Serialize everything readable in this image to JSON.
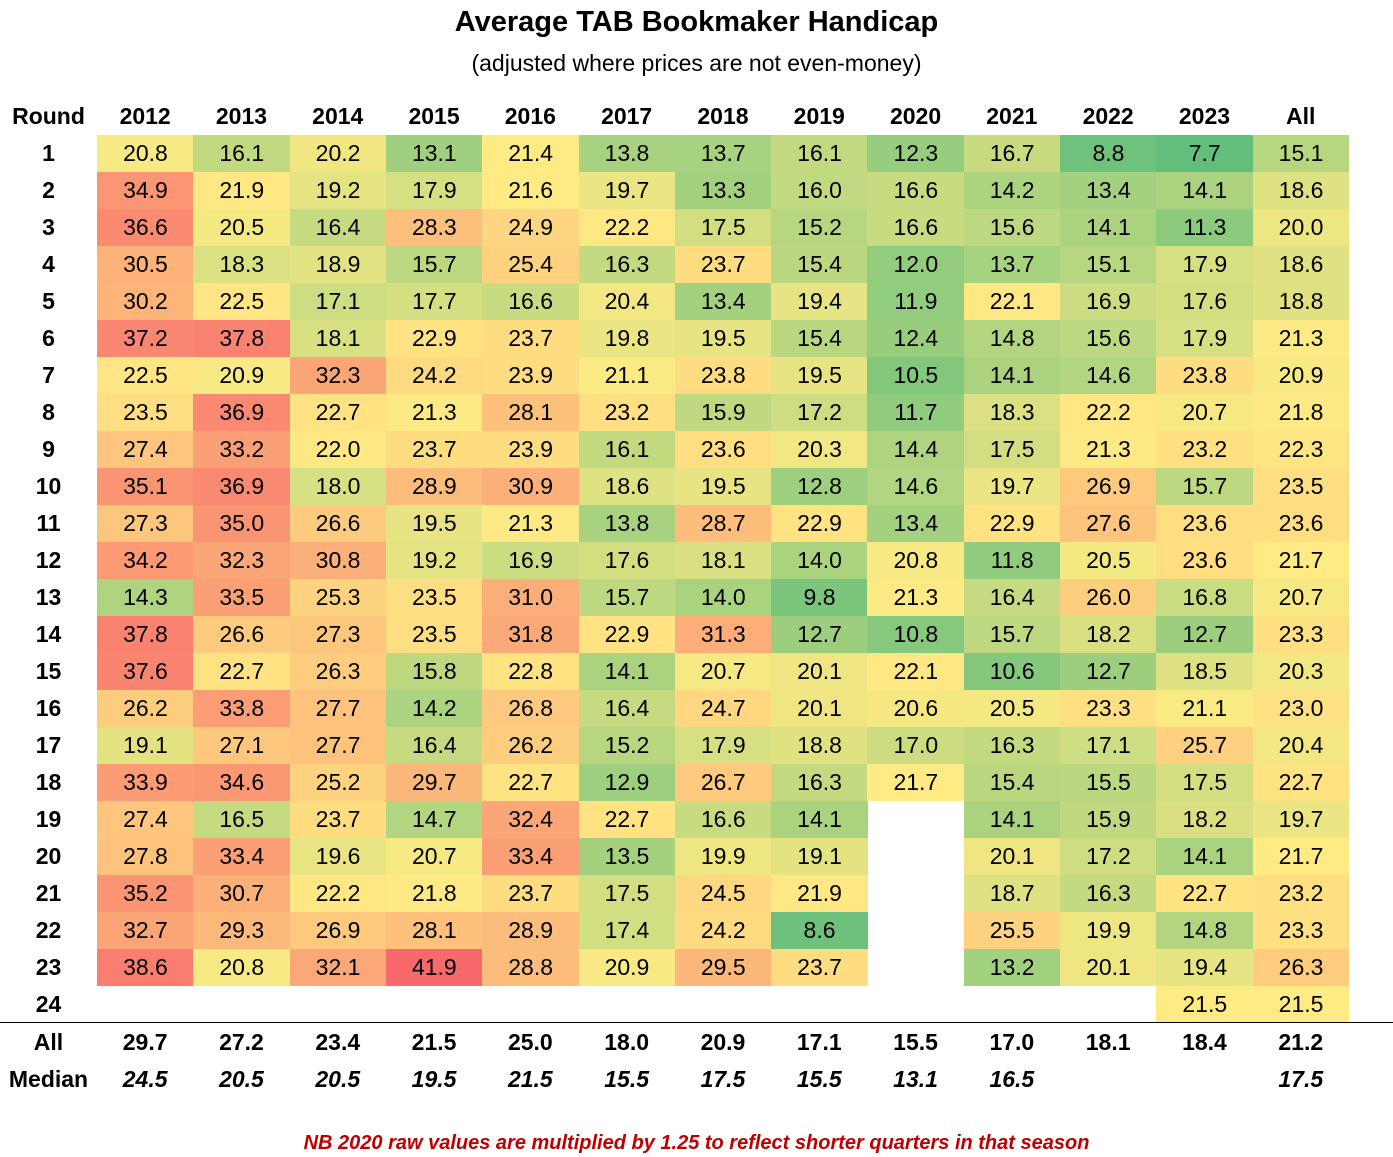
{
  "title": "Average TAB Bookmaker Handicap",
  "subtitle": "(adjusted where prices are not even-money)",
  "footnote": "NB 2020 raw values are multiplied by 1.25 to reflect shorter quarters in that season",
  "chart_data": {
    "type": "heatmap",
    "row_header": "Round",
    "columns": [
      "2012",
      "2013",
      "2014",
      "2015",
      "2016",
      "2017",
      "2018",
      "2019",
      "2020",
      "2021",
      "2022",
      "2023",
      "All"
    ],
    "rows": [
      {
        "label": "1",
        "values": [
          20.8,
          16.1,
          20.2,
          13.1,
          21.4,
          13.8,
          13.7,
          16.1,
          12.3,
          16.7,
          8.8,
          7.7,
          15.1
        ]
      },
      {
        "label": "2",
        "values": [
          34.9,
          21.9,
          19.2,
          17.9,
          21.6,
          19.7,
          13.3,
          16.0,
          16.6,
          14.2,
          13.4,
          14.1,
          18.6
        ]
      },
      {
        "label": "3",
        "values": [
          36.6,
          20.5,
          16.4,
          28.3,
          24.9,
          22.2,
          17.5,
          15.2,
          16.6,
          15.6,
          14.1,
          11.3,
          20.0
        ]
      },
      {
        "label": "4",
        "values": [
          30.5,
          18.3,
          18.9,
          15.7,
          25.4,
          16.3,
          23.7,
          15.4,
          12.0,
          13.7,
          15.1,
          17.9,
          18.6
        ]
      },
      {
        "label": "5",
        "values": [
          30.2,
          22.5,
          17.1,
          17.7,
          16.6,
          20.4,
          13.4,
          19.4,
          11.9,
          22.1,
          16.9,
          17.6,
          18.8
        ]
      },
      {
        "label": "6",
        "values": [
          37.2,
          37.8,
          18.1,
          22.9,
          23.7,
          19.8,
          19.5,
          15.4,
          12.4,
          14.8,
          15.6,
          17.9,
          21.3
        ]
      },
      {
        "label": "7",
        "values": [
          22.5,
          20.9,
          32.3,
          24.2,
          23.9,
          21.1,
          23.8,
          19.5,
          10.5,
          14.1,
          14.6,
          23.8,
          20.9
        ]
      },
      {
        "label": "8",
        "values": [
          23.5,
          36.9,
          22.7,
          21.3,
          28.1,
          23.2,
          15.9,
          17.2,
          11.7,
          18.3,
          22.2,
          20.7,
          21.8
        ]
      },
      {
        "label": "9",
        "values": [
          27.4,
          33.2,
          22.0,
          23.7,
          23.9,
          16.1,
          23.6,
          20.3,
          14.4,
          17.5,
          21.3,
          23.2,
          22.3
        ]
      },
      {
        "label": "10",
        "values": [
          35.1,
          36.9,
          18.0,
          28.9,
          30.9,
          18.6,
          19.5,
          12.8,
          14.6,
          19.7,
          26.9,
          15.7,
          23.5
        ]
      },
      {
        "label": "11",
        "values": [
          27.3,
          35.0,
          26.6,
          19.5,
          21.3,
          13.8,
          28.7,
          22.9,
          13.4,
          22.9,
          27.6,
          23.6,
          23.6
        ]
      },
      {
        "label": "12",
        "values": [
          34.2,
          32.3,
          30.8,
          19.2,
          16.9,
          17.6,
          18.1,
          14.0,
          20.8,
          11.8,
          20.5,
          23.6,
          21.7
        ]
      },
      {
        "label": "13",
        "values": [
          14.3,
          33.5,
          25.3,
          23.5,
          31.0,
          15.7,
          14.0,
          9.8,
          21.3,
          16.4,
          26.0,
          16.8,
          20.7
        ]
      },
      {
        "label": "14",
        "values": [
          37.8,
          26.6,
          27.3,
          23.5,
          31.8,
          22.9,
          31.3,
          12.7,
          10.8,
          15.7,
          18.2,
          12.7,
          23.3
        ]
      },
      {
        "label": "15",
        "values": [
          37.6,
          22.7,
          26.3,
          15.8,
          22.8,
          14.1,
          20.7,
          20.1,
          22.1,
          10.6,
          12.7,
          18.5,
          20.3
        ]
      },
      {
        "label": "16",
        "values": [
          26.2,
          33.8,
          27.7,
          14.2,
          26.8,
          16.4,
          24.7,
          20.1,
          20.6,
          20.5,
          23.3,
          21.1,
          23.0
        ]
      },
      {
        "label": "17",
        "values": [
          19.1,
          27.1,
          27.7,
          16.4,
          26.2,
          15.2,
          17.9,
          18.8,
          17.0,
          16.3,
          17.1,
          25.7,
          20.4
        ]
      },
      {
        "label": "18",
        "values": [
          33.9,
          34.6,
          25.2,
          29.7,
          22.7,
          12.9,
          26.7,
          16.3,
          21.7,
          15.4,
          15.5,
          17.5,
          22.7
        ]
      },
      {
        "label": "19",
        "values": [
          27.4,
          16.5,
          23.7,
          14.7,
          32.4,
          22.7,
          16.6,
          14.1,
          null,
          14.1,
          15.9,
          18.2,
          19.7
        ]
      },
      {
        "label": "20",
        "values": [
          27.8,
          33.4,
          19.6,
          20.7,
          33.4,
          13.5,
          19.9,
          19.1,
          null,
          20.1,
          17.2,
          14.1,
          21.7
        ]
      },
      {
        "label": "21",
        "values": [
          35.2,
          30.7,
          22.2,
          21.8,
          23.7,
          17.5,
          24.5,
          21.9,
          null,
          18.7,
          16.3,
          22.7,
          23.2
        ]
      },
      {
        "label": "22",
        "values": [
          32.7,
          29.3,
          26.9,
          28.1,
          28.9,
          17.4,
          24.2,
          8.6,
          null,
          25.5,
          19.9,
          14.8,
          23.3
        ]
      },
      {
        "label": "23",
        "values": [
          38.6,
          20.8,
          32.1,
          41.9,
          28.8,
          20.9,
          29.5,
          23.7,
          null,
          13.2,
          20.1,
          19.4,
          26.3
        ]
      },
      {
        "label": "24",
        "values": [
          null,
          null,
          null,
          null,
          null,
          null,
          null,
          null,
          null,
          null,
          null,
          21.5,
          21.5
        ]
      }
    ],
    "summary_rows": [
      {
        "label": "All",
        "values": [
          "29.7",
          "27.2",
          "23.4",
          "21.5",
          "25.0",
          "18.0",
          "20.9",
          "17.1",
          "15.5",
          "17.0",
          "18.1",
          "18.4",
          "21.2"
        ]
      },
      {
        "label": "Median",
        "values": [
          "24.5",
          "20.5",
          "20.5",
          "19.5",
          "21.5",
          "15.5",
          "17.5",
          "15.5",
          "13.1",
          "16.5",
          "",
          "",
          "17.5"
        ]
      }
    ],
    "colors": {
      "low": "#63be7b",
      "mid": "#ffeb84",
      "high": "#f8696b"
    },
    "color_scale_range": [
      7.7,
      41.9
    ],
    "color_scale_midpoint": 21.5,
    "footnote_color": "#c00000"
  }
}
